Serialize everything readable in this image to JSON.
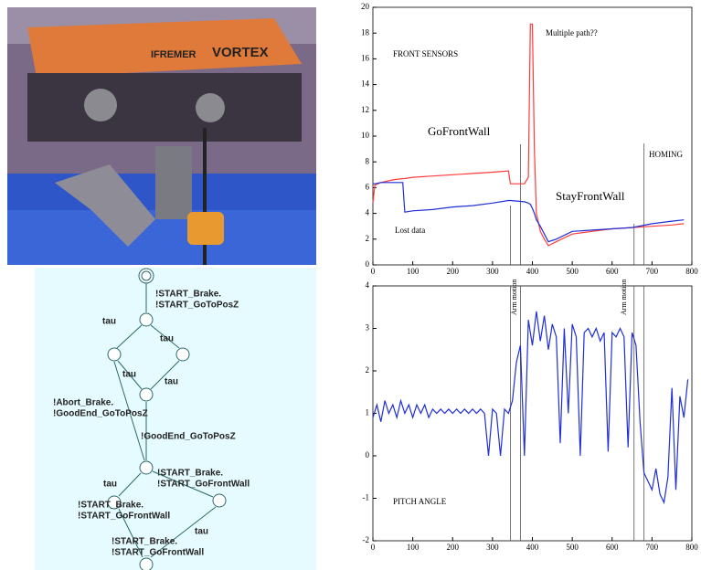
{
  "photo": {
    "texts": [
      "IFREMER",
      "VORTEX"
    ]
  },
  "diagram": {
    "labels": [
      "!START_Brake.",
      "!START_GoToPosZ",
      "tau",
      "tau",
      "tau",
      "tau",
      "!Abort_Brake.",
      "!GoodEnd_GoToPosZ",
      "!GoodEnd_GoToPosZ",
      "!START_Brake.",
      "!START_GoFrontWall",
      "tau",
      "!START_Brake.",
      "!START_GoFrontWall",
      "tau",
      "!START_Brake.",
      "!START_GoFrontWall"
    ]
  },
  "chart_data": [
    {
      "type": "line",
      "annotations": [
        "FRONT SENSORS",
        "Multiple path??",
        "GoFrontWall",
        "HOMING",
        "StayFrontWall",
        "Lost data"
      ],
      "x": [
        0,
        5,
        20,
        50,
        75,
        80,
        100,
        150,
        200,
        250,
        300,
        340,
        345,
        380,
        390,
        395,
        400,
        405,
        410,
        420,
        430,
        440,
        460,
        500,
        550,
        600,
        650,
        700,
        750,
        780
      ],
      "series": [
        {
          "color": "#ff3b3b",
          "values": [
            4.8,
            6.2,
            6.4,
            6.6,
            6.7,
            6.7,
            6.8,
            6.9,
            7.0,
            7.1,
            7.2,
            7.3,
            6.3,
            6.3,
            6.8,
            18.7,
            18.7,
            9,
            4,
            2.6,
            2,
            1.5,
            1.8,
            2.4,
            2.6,
            2.8,
            2.9,
            3.0,
            3.1,
            3.2
          ]
        },
        {
          "color": "#1f2fd6",
          "values": [
            6.3,
            6.3,
            6.4,
            6.4,
            6.4,
            4.1,
            4.2,
            4.3,
            4.5,
            4.6,
            4.8,
            5.0,
            5.0,
            4.9,
            4.8,
            4.7,
            4.4,
            4.0,
            3.5,
            3.0,
            2.4,
            1.8,
            2.0,
            2.6,
            2.7,
            2.8,
            2.9,
            3.2,
            3.4,
            3.5
          ]
        }
      ],
      "vlines": [
        345,
        370,
        655,
        680
      ],
      "xlim": [
        0,
        800
      ],
      "xticks": [
        0,
        100,
        200,
        300,
        400,
        500,
        600,
        700,
        800
      ],
      "ylim": [
        0,
        20
      ],
      "yticks": [
        0,
        2,
        4,
        6,
        8,
        10,
        12,
        14,
        16,
        18,
        20
      ]
    },
    {
      "type": "line",
      "annotations": [
        "PITCH ANGLE",
        "Arm motion",
        "Arm motion"
      ],
      "x": [
        0,
        10,
        20,
        30,
        40,
        50,
        60,
        70,
        80,
        90,
        100,
        110,
        120,
        130,
        140,
        150,
        160,
        170,
        180,
        190,
        200,
        210,
        220,
        230,
        240,
        250,
        260,
        270,
        280,
        290,
        300,
        310,
        320,
        330,
        340,
        350,
        360,
        370,
        380,
        390,
        400,
        410,
        420,
        430,
        440,
        450,
        460,
        470,
        480,
        490,
        500,
        510,
        520,
        530,
        540,
        550,
        560,
        570,
        580,
        590,
        600,
        610,
        620,
        630,
        640,
        650,
        660,
        670,
        680,
        690,
        700,
        710,
        720,
        730,
        740,
        750,
        760,
        770,
        780,
        790
      ],
      "series": [
        {
          "color": "#1f2fd6",
          "values": [
            0.9,
            1.2,
            0.8,
            1.3,
            1.0,
            1.2,
            0.9,
            1.3,
            1.0,
            1.2,
            0.9,
            1.2,
            1.0,
            1.2,
            0.9,
            1.1,
            1.0,
            1.1,
            1.0,
            1.1,
            1.0,
            1.1,
            1.0,
            1.1,
            1.0,
            1.1,
            1.0,
            1.1,
            1.0,
            0,
            1.1,
            1.0,
            0,
            1.1,
            1.0,
            1.3,
            2.2,
            2.6,
            0,
            3.2,
            2.6,
            3.4,
            2.7,
            3.3,
            2.5,
            3.1,
            2.8,
            0.3,
            3.0,
            1.0,
            3.1,
            2.8,
            0,
            2.9,
            3.0,
            2.8,
            3.0,
            2.7,
            2.9,
            0.1,
            2.9,
            2.8,
            3.0,
            2.8,
            0.2,
            2.9,
            2.6,
            0.8,
            -0.4,
            -0.6,
            -0.8,
            -0.3,
            -0.9,
            -1.1,
            -0.5,
            1.6,
            -0.8,
            1.4,
            0.9,
            1.8
          ]
        }
      ],
      "vlines": [
        345,
        370,
        655,
        680
      ],
      "xlim": [
        0,
        800
      ],
      "xticks": [
        0,
        100,
        200,
        300,
        400,
        500,
        600,
        700,
        800
      ],
      "ylim": [
        -2,
        4
      ],
      "yticks": [
        -2,
        -1,
        0,
        1,
        2,
        3,
        4
      ]
    }
  ]
}
